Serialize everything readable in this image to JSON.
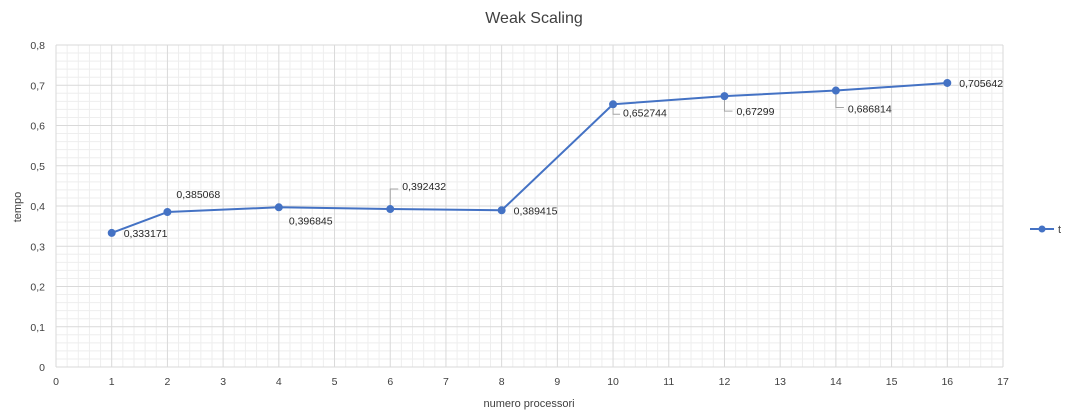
{
  "chart_data": {
    "type": "scatter",
    "title": "Weak Scaling",
    "xlabel": "numero processori",
    "ylabel": "tempo",
    "xlim": [
      0,
      17
    ],
    "ylim": [
      0,
      0.8
    ],
    "x_ticks": [
      "0",
      "1",
      "2",
      "3",
      "4",
      "5",
      "6",
      "7",
      "8",
      "9",
      "10",
      "11",
      "12",
      "13",
      "14",
      "15",
      "16",
      "17"
    ],
    "y_ticks": [
      "0",
      "0,1",
      "0,2",
      "0,3",
      "0,4",
      "0,5",
      "0,6",
      "0,7",
      "0,8"
    ],
    "grid": "major and minor",
    "legend_position": "right",
    "series": [
      {
        "name": "t",
        "color": "#4472C4",
        "x": [
          1,
          2,
          4,
          6,
          8,
          10,
          12,
          14,
          16
        ],
        "y": [
          0.333171,
          0.385068,
          0.396845,
          0.392432,
          0.389415,
          0.652744,
          0.67299,
          0.686814,
          0.705642
        ],
        "labels": [
          "0,333171",
          "0,385068",
          "0,396845",
          "0,392432",
          "0,389415",
          "0,652744",
          "0,67299",
          "0,686814",
          "0,705642"
        ]
      }
    ]
  }
}
